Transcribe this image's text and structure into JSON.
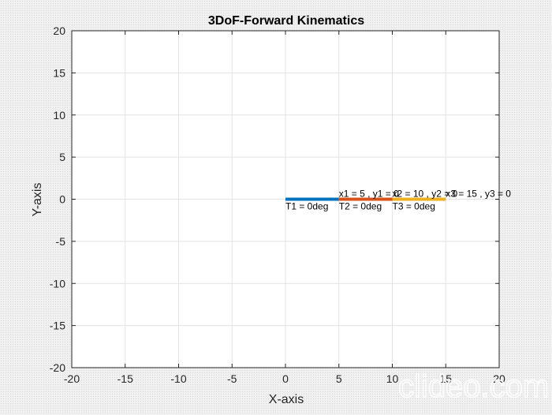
{
  "chart_data": {
    "type": "line",
    "title": "3DoF-Forward Kinematics",
    "xlabel": "X-axis",
    "ylabel": "Y-axis",
    "xlim": [
      -20,
      20
    ],
    "ylim": [
      -20,
      20
    ],
    "xticks": [
      -20,
      -15,
      -10,
      -5,
      0,
      5,
      10,
      15,
      20
    ],
    "yticks": [
      -20,
      -15,
      -10,
      -5,
      0,
      5,
      10,
      15,
      20
    ],
    "grid": true,
    "series": [
      {
        "x": [
          0,
          5
        ],
        "y": [
          0,
          0
        ],
        "color": "#0072bd"
      },
      {
        "x": [
          5,
          10
        ],
        "y": [
          0,
          0
        ],
        "color": "#d95319"
      },
      {
        "x": [
          10,
          15
        ],
        "y": [
          0,
          0
        ],
        "color": "#edb120"
      }
    ],
    "annotations": [
      {
        "text": "x1 = 5 , y1 = 0",
        "x": 5,
        "y": 0,
        "position": "above"
      },
      {
        "text": "x2 = 10 , y2 = 0",
        "x": 10,
        "y": 0,
        "position": "above"
      },
      {
        "text": "x3 = 15 , y3 = 0",
        "x": 15,
        "y": 0,
        "position": "above"
      },
      {
        "text": "T1 = 0deg",
        "x": 0,
        "y": 0,
        "position": "below"
      },
      {
        "text": "T2 = 0deg",
        "x": 5,
        "y": 0,
        "position": "below"
      },
      {
        "text": "T3 = 0deg",
        "x": 10,
        "y": 0,
        "position": "below"
      }
    ]
  },
  "watermark": "clideo.com"
}
